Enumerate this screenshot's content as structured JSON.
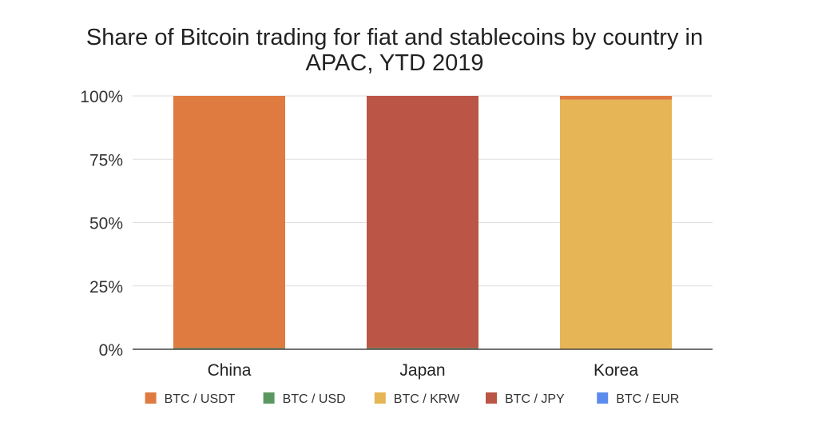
{
  "chart_data": {
    "type": "bar",
    "stacked": true,
    "title_lines": [
      "Share of Bitcoin trading for fiat and stablecoins by country in",
      "APAC, YTD 2019"
    ],
    "categories": [
      "China",
      "Japan",
      "Korea"
    ],
    "y_ticks": [
      "0%",
      "25%",
      "50%",
      "75%",
      "100%"
    ],
    "ylim": [
      0,
      100
    ],
    "grid": true,
    "legend_position": "bottom",
    "series": [
      {
        "name": "BTC / USDT",
        "color": "#df7a40",
        "values": [
          99.5,
          0,
          1.5
        ]
      },
      {
        "name": "BTC / USD",
        "color": "#5a9860",
        "values": [
          0.5,
          0.5,
          0
        ]
      },
      {
        "name": "BTC / KRW",
        "color": "#e6b555",
        "values": [
          0,
          0,
          98.5
        ]
      },
      {
        "name": "BTC / JPY",
        "color": "#bb5545",
        "values": [
          0,
          99.5,
          0
        ]
      },
      {
        "name": "BTC / EUR",
        "color": "#5b8ced",
        "values": [
          0,
          0,
          0
        ]
      }
    ],
    "stack_order": [
      "BTC / USD",
      "BTC / KRW",
      "BTC / JPY",
      "BTC / USDT",
      "BTC / EUR"
    ]
  }
}
